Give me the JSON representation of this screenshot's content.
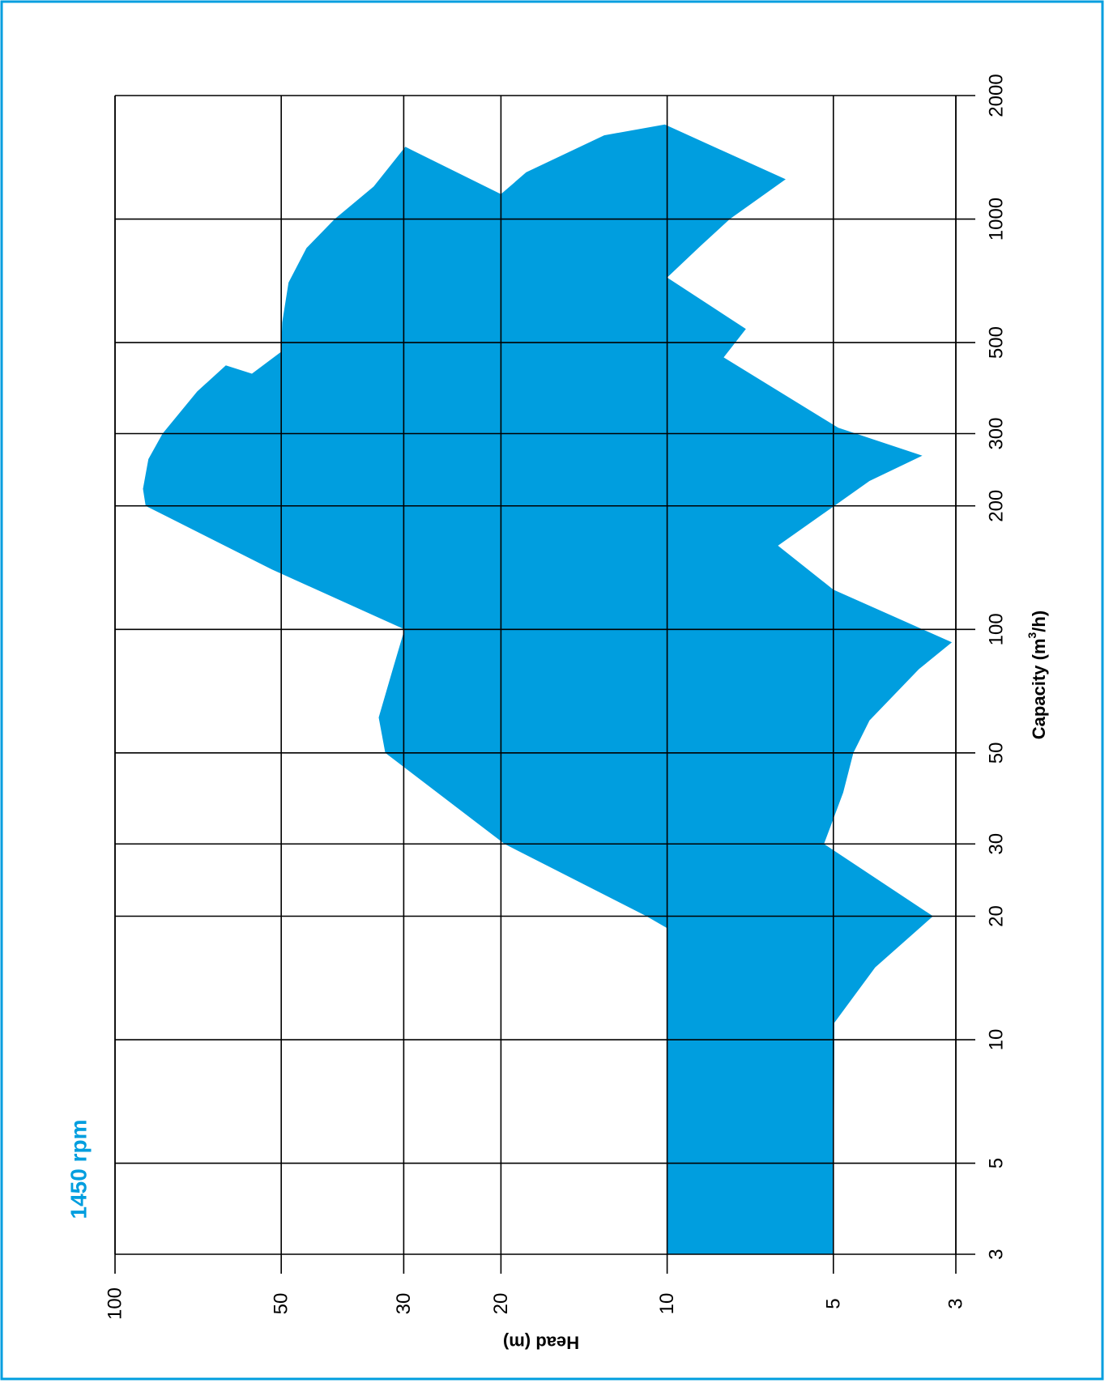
{
  "chart_data": {
    "type": "area",
    "speed_label": "1450 rpm",
    "x_axis": {
      "label": "Capacity (m³/h)",
      "label_prefix": "Capacity (m",
      "label_sup": "3",
      "label_suffix": "/h)",
      "scale": "log",
      "range": [
        3,
        2000
      ],
      "ticks": [
        3,
        5,
        10,
        20,
        30,
        50,
        100,
        200,
        300,
        500,
        1000,
        2000
      ],
      "tick_labels": [
        "3",
        "5",
        "10",
        "20",
        "30",
        "50",
        "100",
        "200",
        "300",
        "500",
        "1000",
        "2000"
      ]
    },
    "y_axis": {
      "label": "Head (m)",
      "scale": "log",
      "range": [
        3,
        100
      ],
      "ticks": [
        100,
        50,
        30,
        20,
        10,
        5,
        3
      ],
      "tick_labels": [
        "100",
        "50",
        "30",
        "20",
        "10",
        "5",
        "3"
      ]
    },
    "grid": true,
    "fill_color": "#009edf",
    "frame_color": "#009edf",
    "coverage_outline": [
      [
        3,
        10
      ],
      [
        18.7,
        10
      ],
      [
        20,
        10.9
      ],
      [
        30,
        19.7
      ],
      [
        50,
        32.4
      ],
      [
        61,
        33.3
      ],
      [
        80,
        31.4
      ],
      [
        100,
        29.9
      ],
      [
        140,
        52
      ],
      [
        200,
        88
      ],
      [
        220,
        89
      ],
      [
        260,
        87
      ],
      [
        300,
        82
      ],
      [
        380,
        71
      ],
      [
        440,
        63
      ],
      [
        420,
        56.5
      ],
      [
        475,
        50
      ],
      [
        560,
        49.8
      ],
      [
        700,
        48.5
      ],
      [
        850,
        45
      ],
      [
        1000,
        40
      ],
      [
        1200,
        34
      ],
      [
        1500,
        29.8
      ],
      [
        1150,
        20
      ],
      [
        1300,
        18
      ],
      [
        1600,
        13
      ],
      [
        1700,
        10.1
      ],
      [
        1250,
        6.1
      ],
      [
        1000,
        7.7
      ],
      [
        860,
        8.7
      ],
      [
        720,
        10
      ],
      [
        540,
        7.2
      ],
      [
        460,
        7.9
      ],
      [
        310,
        4.9
      ],
      [
        265,
        3.45
      ],
      [
        230,
        4.3
      ],
      [
        200,
        4.98
      ],
      [
        160,
        6.3
      ],
      [
        125,
        5
      ],
      [
        93,
        3.05
      ],
      [
        80,
        3.5
      ],
      [
        60,
        4.3
      ],
      [
        50,
        4.6
      ],
      [
        40,
        4.8
      ],
      [
        30,
        5.2
      ],
      [
        20,
        3.3
      ],
      [
        15,
        4.2
      ],
      [
        11,
        4.98
      ],
      [
        3,
        5
      ]
    ]
  }
}
